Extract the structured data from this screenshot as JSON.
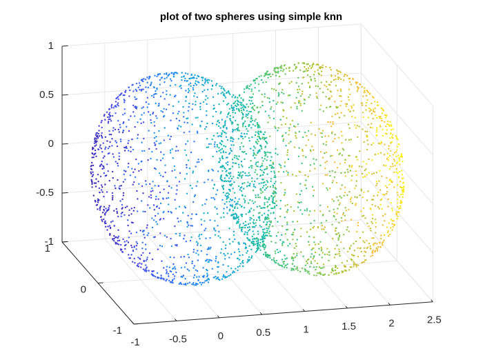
{
  "chart_data": {
    "type": "scatter",
    "title": "plot of two spheres using simple knn",
    "xlabel": "",
    "ylabel": "",
    "zlabel": "",
    "xlim": [
      -1,
      2.5
    ],
    "ylim": [
      -1,
      1
    ],
    "zlim": [
      -1,
      1
    ],
    "x_ticks": [
      "-1",
      "-0.5",
      "0",
      "0.5",
      "1",
      "1.5",
      "2",
      "2.5"
    ],
    "y_ticks": [
      "-1",
      "0",
      "1"
    ],
    "z_ticks": [
      "-1",
      "-0.5",
      "0",
      "0.5",
      "1"
    ],
    "grid": true,
    "spheres": [
      {
        "center": [
          0,
          0,
          0
        ],
        "radius": 1
      },
      {
        "center": [
          1.5,
          0,
          0
        ],
        "radius": 1
      }
    ],
    "points_per_sphere": 1600,
    "colormap": "parula",
    "color_by": "x",
    "color_range": [
      -1,
      2.5
    ]
  }
}
